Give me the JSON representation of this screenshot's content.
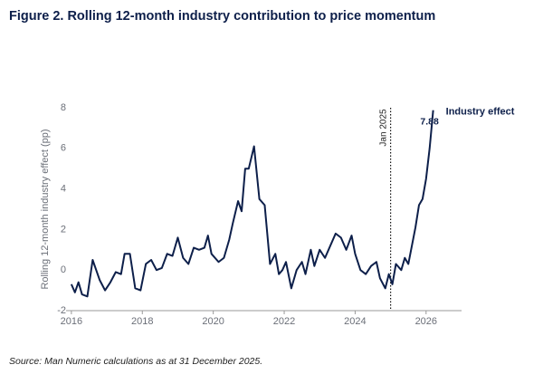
{
  "chart_data": {
    "type": "line",
    "title": "Figure 2. Rolling 12-month industry contribution to price momentum",
    "ylabel": "Rolling 12-month industry effect (pp)",
    "source": "Source: Man Numeric calculations as at 31 December 2025.",
    "x": [
      2016.0,
      2016.1,
      2016.2,
      2016.3,
      2016.45,
      2016.6,
      2016.8,
      2016.95,
      2017.1,
      2017.25,
      2017.4,
      2017.5,
      2017.65,
      2017.8,
      2017.95,
      2018.1,
      2018.25,
      2018.4,
      2018.55,
      2018.7,
      2018.85,
      2019.0,
      2019.15,
      2019.3,
      2019.45,
      2019.6,
      2019.75,
      2019.85,
      2019.95,
      2020.15,
      2020.3,
      2020.45,
      2020.55,
      2020.7,
      2020.8,
      2020.9,
      2021.0,
      2021.15,
      2021.3,
      2021.45,
      2021.6,
      2021.75,
      2021.85,
      2021.95,
      2022.05,
      2022.2,
      2022.35,
      2022.5,
      2022.6,
      2022.75,
      2022.85,
      2023.0,
      2023.15,
      2023.3,
      2023.45,
      2023.6,
      2023.75,
      2023.9,
      2024.0,
      2024.15,
      2024.3,
      2024.45,
      2024.6,
      2024.7,
      2024.85,
      2024.95,
      2025.05,
      2025.15,
      2025.3,
      2025.4,
      2025.5,
      2025.6,
      2025.7,
      2025.8,
      2025.9,
      2026.0,
      2026.1,
      2026.2
    ],
    "series": [
      {
        "name": "Industry effect",
        "color": "#0d1f4a",
        "values": [
          -0.7,
          -1.1,
          -0.6,
          -1.2,
          -1.3,
          0.5,
          -0.5,
          -1.0,
          -0.6,
          -0.1,
          -0.2,
          0.8,
          0.8,
          -0.9,
          -1.0,
          0.3,
          0.5,
          0.0,
          0.1,
          0.8,
          0.7,
          1.6,
          0.6,
          0.3,
          1.1,
          1.0,
          1.1,
          1.7,
          0.8,
          0.4,
          0.6,
          1.5,
          2.3,
          3.4,
          2.9,
          5.0,
          5.0,
          6.1,
          3.5,
          3.2,
          0.3,
          0.8,
          -0.2,
          0.0,
          0.4,
          -0.9,
          0.0,
          0.4,
          -0.2,
          1.0,
          0.2,
          1.0,
          0.6,
          1.2,
          1.8,
          1.6,
          1.0,
          1.7,
          0.8,
          0.0,
          -0.2,
          0.2,
          0.4,
          -0.4,
          -0.9,
          -0.2,
          -0.7,
          0.3,
          0.0,
          0.6,
          0.3,
          1.2,
          2.1,
          3.2,
          3.5,
          4.5,
          6.0,
          7.88
        ]
      }
    ],
    "annotations": [
      {
        "text": "Jan 2025",
        "x": 2025
      }
    ],
    "xlim": [
      2015.85,
      2027.0
    ],
    "xticks": [
      2016,
      2018,
      2020,
      2022,
      2024,
      2026
    ],
    "ylim": [
      -2,
      8
    ],
    "yticks": [
      -2,
      0,
      2,
      4,
      6,
      8
    ],
    "grid": false
  }
}
